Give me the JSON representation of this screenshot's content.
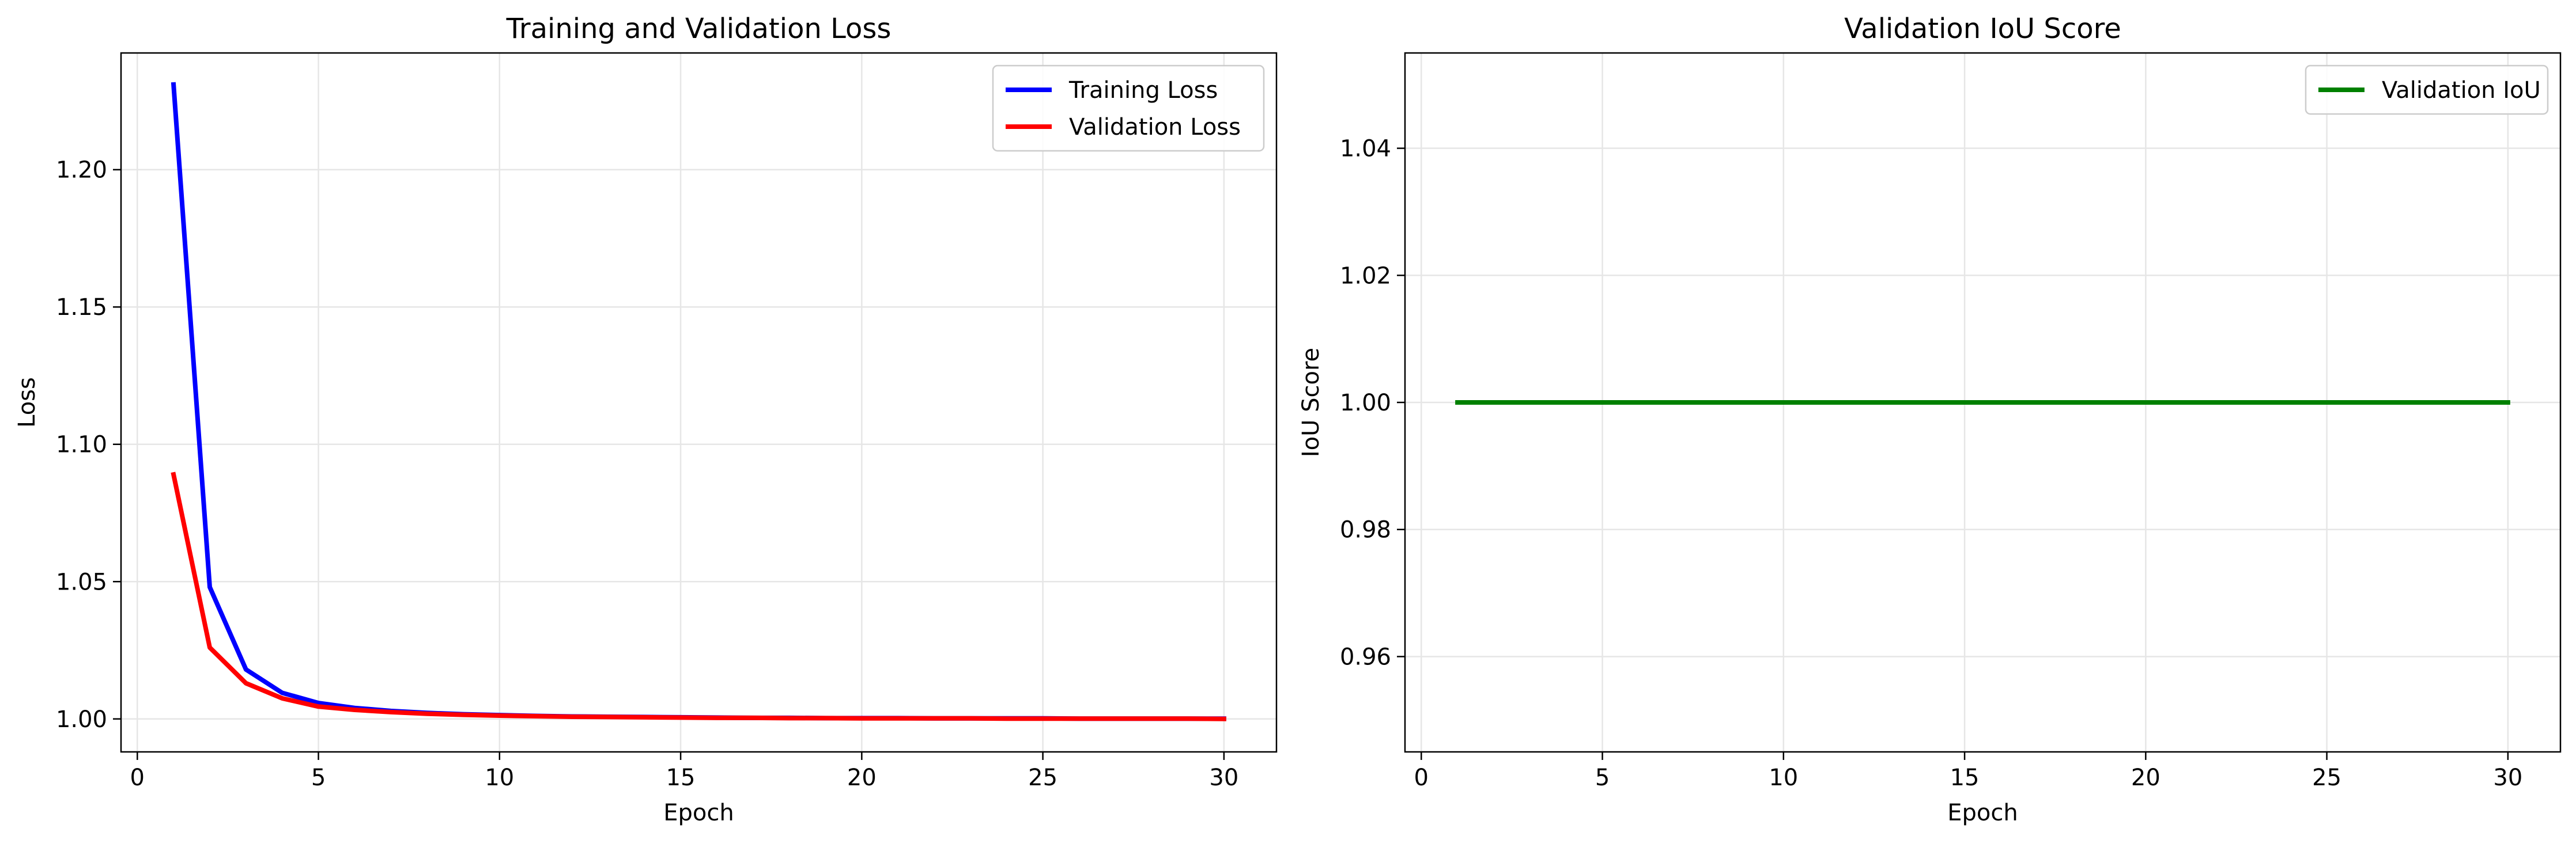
{
  "chart_data": [
    {
      "type": "line",
      "title": "Training and Validation Loss",
      "xlabel": "Epoch",
      "ylabel": "Loss",
      "xlim": [
        -0.45,
        31.45
      ],
      "ylim": [
        0.988,
        1.2425
      ],
      "xticks": [
        0,
        5,
        10,
        15,
        20,
        25,
        30
      ],
      "xtick_labels": [
        "0",
        "5",
        "10",
        "15",
        "20",
        "25",
        "30"
      ],
      "yticks": [
        1.0,
        1.05,
        1.1,
        1.15,
        1.2
      ],
      "ytick_labels": [
        "1.00",
        "1.05",
        "1.10",
        "1.15",
        "1.20"
      ],
      "grid": true,
      "legend_position": "top-right",
      "x": [
        1,
        2,
        3,
        4,
        5,
        6,
        7,
        8,
        9,
        10,
        11,
        12,
        13,
        14,
        15,
        16,
        17,
        18,
        19,
        20,
        21,
        22,
        23,
        24,
        25,
        26,
        27,
        28,
        29,
        30
      ],
      "series": [
        {
          "name": "Training Loss",
          "color": "#0000ff",
          "values": [
            1.231,
            1.048,
            1.018,
            1.0095,
            1.0058,
            1.004,
            1.0029,
            1.0022,
            1.0017,
            1.0014,
            1.0011,
            1.0009,
            1.0008,
            1.0007,
            1.0006,
            1.0005,
            1.0004,
            1.0004,
            1.0003,
            1.0003,
            1.0003,
            1.0002,
            1.0002,
            1.0002,
            1.0002,
            1.0001,
            1.0001,
            1.0001,
            1.0001,
            1.0001
          ]
        },
        {
          "name": "Validation Loss",
          "color": "#ff0000",
          "values": [
            1.089,
            1.026,
            1.013,
            1.0075,
            1.0045,
            1.0033,
            1.0025,
            1.0019,
            1.0015,
            1.0012,
            1.001,
            1.0008,
            1.0007,
            1.0006,
            1.0005,
            1.0004,
            1.0004,
            1.0003,
            1.0003,
            1.0002,
            1.0002,
            1.0002,
            1.0002,
            1.0001,
            1.0001,
            1.0001,
            1.0001,
            1.0001,
            1.0001,
            1.0
          ]
        }
      ]
    },
    {
      "type": "line",
      "title": "Validation IoU Score",
      "xlabel": "Epoch",
      "ylabel": "IoU Score",
      "xlim": [
        -0.45,
        31.45
      ],
      "ylim": [
        0.945,
        1.055
      ],
      "xticks": [
        0,
        5,
        10,
        15,
        20,
        25,
        30
      ],
      "xtick_labels": [
        "0",
        "5",
        "10",
        "15",
        "20",
        "25",
        "30"
      ],
      "yticks": [
        0.96,
        0.98,
        1.0,
        1.02,
        1.04
      ],
      "ytick_labels": [
        "0.96",
        "0.98",
        "1.00",
        "1.02",
        "1.04"
      ],
      "grid": true,
      "legend_position": "top-right",
      "x": [
        1,
        2,
        3,
        4,
        5,
        6,
        7,
        8,
        9,
        10,
        11,
        12,
        13,
        14,
        15,
        16,
        17,
        18,
        19,
        20,
        21,
        22,
        23,
        24,
        25,
        26,
        27,
        28,
        29,
        30
      ],
      "series": [
        {
          "name": "Validation IoU",
          "color": "#008000",
          "values": [
            1.0,
            1.0,
            1.0,
            1.0,
            1.0,
            1.0,
            1.0,
            1.0,
            1.0,
            1.0,
            1.0,
            1.0,
            1.0,
            1.0,
            1.0,
            1.0,
            1.0,
            1.0,
            1.0,
            1.0,
            1.0,
            1.0,
            1.0,
            1.0,
            1.0,
            1.0,
            1.0,
            1.0,
            1.0,
            1.0
          ]
        }
      ]
    }
  ]
}
